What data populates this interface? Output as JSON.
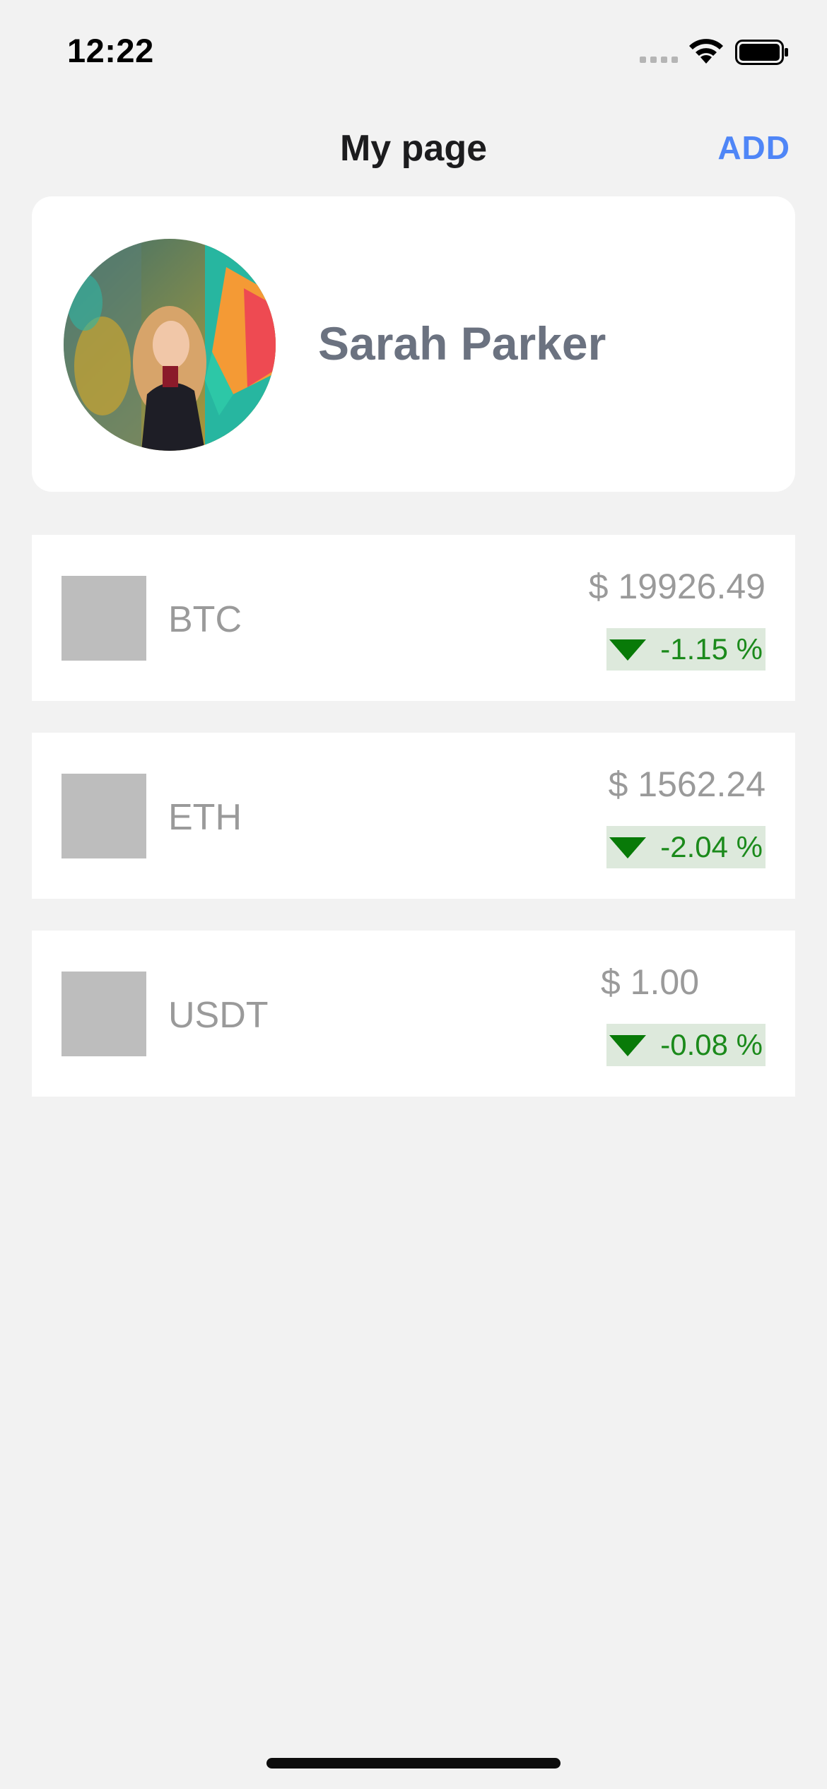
{
  "status_bar": {
    "time": "12:22"
  },
  "nav": {
    "title": "My page",
    "add_label": "ADD"
  },
  "profile": {
    "name": "Sarah Parker"
  },
  "coins": [
    {
      "symbol": "BTC",
      "price": "$ 19926.49",
      "change": "-1.15 %"
    },
    {
      "symbol": "ETH",
      "price": "$ 1562.24",
      "change": "-2.04 %"
    },
    {
      "symbol": "USDT",
      "price": "$ 1.00",
      "change": "-0.08 %"
    }
  ],
  "colors": {
    "accent": "#4f86f7",
    "change_text": "#1b8a1b",
    "change_bg": "#dde9dc",
    "down_arrow": "#087a08"
  }
}
